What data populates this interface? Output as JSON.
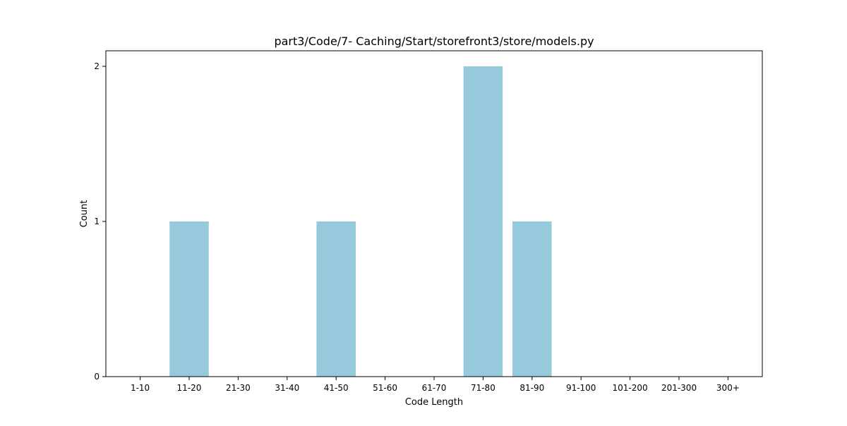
{
  "chart_data": {
    "type": "bar",
    "title": "part3/Code/7- Caching/Start/storefront3/store/models.py",
    "xlabel": "Code Length",
    "ylabel": "Count",
    "categories": [
      "1-10",
      "11-20",
      "21-30",
      "31-40",
      "41-50",
      "51-60",
      "61-70",
      "71-80",
      "81-90",
      "91-100",
      "101-200",
      "201-300",
      "300+"
    ],
    "values": [
      0,
      1,
      0,
      0,
      1,
      0,
      0,
      2,
      1,
      0,
      0,
      0,
      0
    ],
    "ylim": [
      0,
      2.1
    ],
    "yticks": [
      0,
      1,
      2
    ],
    "grid": false,
    "bar_color": "#96c9dc"
  }
}
